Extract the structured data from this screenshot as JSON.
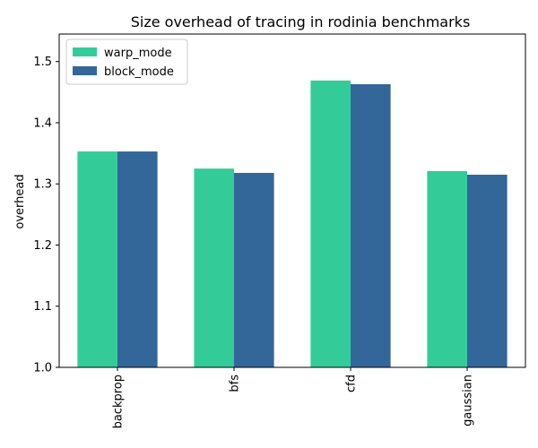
{
  "chart_data": {
    "type": "bar",
    "title": "Size overhead of tracing in rodinia benchmarks",
    "xlabel": "",
    "ylabel": "overhead",
    "categories": [
      "backprop",
      "bfs",
      "cfd",
      "gaussian"
    ],
    "series": [
      {
        "name": "warp_mode",
        "color": "#33cc99",
        "values": [
          1.353,
          1.325,
          1.469,
          1.321
        ]
      },
      {
        "name": "block_mode",
        "color": "#336699",
        "values": [
          1.353,
          1.318,
          1.463,
          1.315
        ]
      }
    ],
    "ylim": [
      1.0,
      1.545
    ],
    "yticks": [
      "1.0",
      "1.1",
      "1.2",
      "1.3",
      "1.4",
      "1.5"
    ],
    "grid": false,
    "legend_position": "top-left"
  }
}
